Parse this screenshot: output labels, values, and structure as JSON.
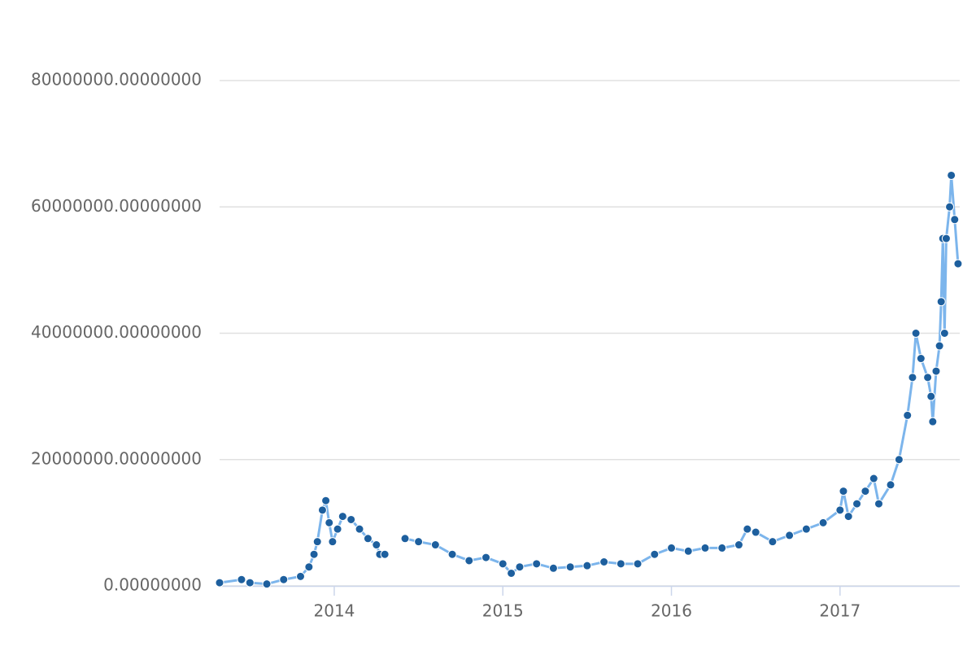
{
  "chart_data": {
    "type": "line",
    "x": [
      2013.32,
      2013.45,
      2013.5,
      2013.6,
      2013.7,
      2013.8,
      2013.85,
      2013.88,
      2013.9,
      2013.93,
      2013.95,
      2013.97,
      2013.99,
      2014.02,
      2014.05,
      2014.1,
      2014.15,
      2014.2,
      2014.25,
      2014.27,
      2014.3,
      2014.36,
      2014.42,
      2014.5,
      2014.6,
      2014.7,
      2014.8,
      2014.9,
      2015.0,
      2015.05,
      2015.1,
      2015.2,
      2015.3,
      2015.4,
      2015.5,
      2015.6,
      2015.7,
      2015.8,
      2015.9,
      2016.0,
      2016.1,
      2016.2,
      2016.3,
      2016.4,
      2016.45,
      2016.5,
      2016.6,
      2016.7,
      2016.8,
      2016.9,
      2017.0,
      2017.02,
      2017.05,
      2017.1,
      2017.15,
      2017.2,
      2017.23,
      2017.3,
      2017.35,
      2017.4,
      2017.43,
      2017.45,
      2017.48,
      2017.52,
      2017.54,
      2017.55,
      2017.57,
      2017.59,
      2017.6,
      2017.61,
      2017.62,
      2017.63,
      2017.65,
      2017.66,
      2017.68,
      2017.7
    ],
    "values": [
      500000,
      1000000,
      500000,
      300000,
      1000000,
      1500000,
      3000000,
      5000000,
      7000000,
      12000000,
      13500000,
      10000000,
      7000000,
      9000000,
      11000000,
      10500000,
      9000000,
      7500000,
      6500000,
      5000000,
      5000000,
      null,
      7500000,
      7000000,
      6500000,
      5000000,
      4000000,
      4500000,
      3500000,
      2000000,
      3000000,
      3500000,
      2800000,
      3000000,
      3200000,
      3800000,
      3500000,
      3500000,
      5000000,
      6000000,
      5500000,
      6000000,
      6000000,
      6500000,
      9000000,
      8500000,
      7000000,
      8000000,
      9000000,
      10000000,
      12000000,
      15000000,
      11000000,
      13000000,
      15000000,
      17000000,
      13000000,
      16000000,
      20000000,
      27000000,
      33000000,
      40000000,
      36000000,
      33000000,
      30000000,
      26000000,
      34000000,
      38000000,
      45000000,
      55000000,
      40000000,
      55000000,
      60000000,
      65000000,
      58000000,
      51000000
    ],
    "color": "#1d5f9e",
    "line_color": "#7cb5ec",
    "xlim": [
      2013.32,
      2017.71
    ],
    "xticks": [
      2014,
      2015,
      2016,
      2017
    ],
    "ylim": [
      0,
      80000000
    ],
    "yticks": [
      {
        "value": 0,
        "label": "0.00000000"
      },
      {
        "value": 20000000,
        "label": "20000000.00000000"
      },
      {
        "value": 40000000,
        "label": "40000000.00000000"
      },
      {
        "value": 60000000,
        "label": "60000000.00000000"
      },
      {
        "value": 80000000,
        "label": "80000000.00000000"
      }
    ],
    "grid": true
  }
}
